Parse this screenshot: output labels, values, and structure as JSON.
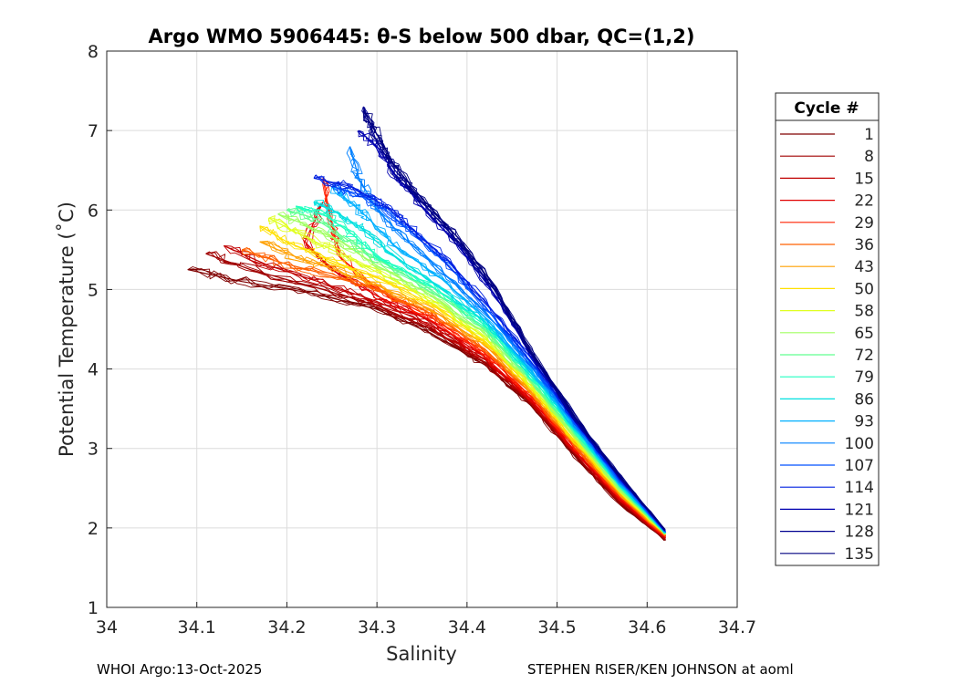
{
  "chart_data": {
    "type": "line",
    "title": "Argo WMO 5906445: θ-S below 500 dbar,  QC=(1,2)",
    "xlabel": "Salinity",
    "ylabel": "Potential Temperature (˚C)",
    "xlim": [
      34,
      34.7
    ],
    "ylim": [
      1,
      8
    ],
    "xticks": [
      "34",
      "34.1",
      "34.2",
      "34.3",
      "34.4",
      "34.5",
      "34.6",
      "34.7"
    ],
    "yticks": [
      "1",
      "2",
      "3",
      "4",
      "5",
      "6",
      "7",
      "8"
    ],
    "grid": true,
    "legend_title": "Cycle #",
    "legend_placement": "outside-right",
    "series": [
      {
        "name": "1",
        "color": "#800000",
        "values": [
          [
            34.62,
            1.85
          ],
          [
            34.57,
            2.3
          ],
          [
            34.52,
            2.9
          ],
          [
            34.47,
            3.55
          ],
          [
            34.42,
            4.05
          ],
          [
            34.36,
            4.45
          ],
          [
            34.3,
            4.75
          ],
          [
            34.23,
            4.95
          ],
          [
            34.15,
            5.1
          ],
          [
            34.09,
            5.25
          ]
        ]
      },
      {
        "name": "8",
        "color": "#a00000",
        "values": [
          [
            34.62,
            1.86
          ],
          [
            34.57,
            2.32
          ],
          [
            34.52,
            2.92
          ],
          [
            34.47,
            3.58
          ],
          [
            34.42,
            4.08
          ],
          [
            34.36,
            4.5
          ],
          [
            34.3,
            4.8
          ],
          [
            34.24,
            5.0
          ],
          [
            34.16,
            5.25
          ],
          [
            34.11,
            5.45
          ]
        ]
      },
      {
        "name": "15",
        "color": "#c00000",
        "values": [
          [
            34.62,
            1.87
          ],
          [
            34.57,
            2.34
          ],
          [
            34.52,
            2.95
          ],
          [
            34.47,
            3.6
          ],
          [
            34.42,
            4.12
          ],
          [
            34.36,
            4.55
          ],
          [
            34.3,
            4.85
          ],
          [
            34.24,
            5.08
          ],
          [
            34.18,
            5.3
          ],
          [
            34.13,
            5.55
          ]
        ]
      },
      {
        "name": "22",
        "color": "#e00000",
        "values": [
          [
            34.62,
            1.88
          ],
          [
            34.57,
            2.36
          ],
          [
            34.52,
            2.97
          ],
          [
            34.47,
            3.63
          ],
          [
            34.42,
            4.15
          ],
          [
            34.36,
            4.6
          ],
          [
            34.3,
            4.92
          ],
          [
            34.25,
            5.25
          ],
          [
            34.22,
            5.6
          ],
          [
            34.24,
            6.1
          ]
        ]
      },
      {
        "name": "29",
        "color": "#ff2000",
        "values": [
          [
            34.62,
            1.89
          ],
          [
            34.57,
            2.38
          ],
          [
            34.52,
            3.0
          ],
          [
            34.47,
            3.66
          ],
          [
            34.42,
            4.2
          ],
          [
            34.36,
            4.65
          ],
          [
            34.3,
            5.0
          ],
          [
            34.26,
            5.4
          ],
          [
            34.25,
            5.8
          ],
          [
            34.24,
            6.4
          ]
        ]
      },
      {
        "name": "36",
        "color": "#ff6000",
        "values": [
          [
            34.62,
            1.9
          ],
          [
            34.57,
            2.4
          ],
          [
            34.52,
            3.03
          ],
          [
            34.47,
            3.7
          ],
          [
            34.42,
            4.25
          ],
          [
            34.36,
            4.7
          ],
          [
            34.3,
            5.0
          ],
          [
            34.24,
            5.2
          ],
          [
            34.19,
            5.35
          ],
          [
            34.15,
            5.5
          ]
        ]
      },
      {
        "name": "43",
        "color": "#ffa000",
        "values": [
          [
            34.62,
            1.91
          ],
          [
            34.57,
            2.42
          ],
          [
            34.52,
            3.06
          ],
          [
            34.47,
            3.73
          ],
          [
            34.42,
            4.3
          ],
          [
            34.36,
            4.75
          ],
          [
            34.3,
            5.05
          ],
          [
            34.24,
            5.3
          ],
          [
            34.2,
            5.45
          ],
          [
            34.17,
            5.6
          ]
        ]
      },
      {
        "name": "50",
        "color": "#ffe000",
        "values": [
          [
            34.62,
            1.92
          ],
          [
            34.57,
            2.44
          ],
          [
            34.52,
            3.09
          ],
          [
            34.47,
            3.77
          ],
          [
            34.42,
            4.35
          ],
          [
            34.36,
            4.82
          ],
          [
            34.3,
            5.15
          ],
          [
            34.24,
            5.4
          ],
          [
            34.2,
            5.6
          ],
          [
            34.17,
            5.8
          ]
        ]
      },
      {
        "name": "58",
        "color": "#e0ff20",
        "values": [
          [
            34.62,
            1.92
          ],
          [
            34.57,
            2.46
          ],
          [
            34.52,
            3.12
          ],
          [
            34.47,
            3.8
          ],
          [
            34.42,
            4.4
          ],
          [
            34.36,
            4.88
          ],
          [
            34.3,
            5.22
          ],
          [
            34.25,
            5.5
          ],
          [
            34.21,
            5.72
          ],
          [
            34.18,
            5.9
          ]
        ]
      },
      {
        "name": "65",
        "color": "#a0ff60",
        "values": [
          [
            34.62,
            1.93
          ],
          [
            34.57,
            2.48
          ],
          [
            34.52,
            3.15
          ],
          [
            34.47,
            3.84
          ],
          [
            34.42,
            4.45
          ],
          [
            34.36,
            4.93
          ],
          [
            34.3,
            5.3
          ],
          [
            34.26,
            5.6
          ],
          [
            34.22,
            5.82
          ],
          [
            34.19,
            5.95
          ]
        ]
      },
      {
        "name": "72",
        "color": "#60ff90",
        "values": [
          [
            34.62,
            1.93
          ],
          [
            34.57,
            2.5
          ],
          [
            34.52,
            3.18
          ],
          [
            34.47,
            3.88
          ],
          [
            34.42,
            4.5
          ],
          [
            34.36,
            5.0
          ],
          [
            34.3,
            5.38
          ],
          [
            34.26,
            5.68
          ],
          [
            34.23,
            5.9
          ],
          [
            34.2,
            6.0
          ]
        ]
      },
      {
        "name": "79",
        "color": "#20ffc0",
        "values": [
          [
            34.62,
            1.94
          ],
          [
            34.57,
            2.52
          ],
          [
            34.52,
            3.21
          ],
          [
            34.47,
            3.92
          ],
          [
            34.42,
            4.55
          ],
          [
            34.36,
            5.05
          ],
          [
            34.3,
            5.42
          ],
          [
            34.27,
            5.72
          ],
          [
            34.24,
            5.95
          ],
          [
            34.21,
            6.05
          ]
        ]
      },
      {
        "name": "86",
        "color": "#00e0e0",
        "values": [
          [
            34.62,
            1.94
          ],
          [
            34.57,
            2.54
          ],
          [
            34.52,
            3.24
          ],
          [
            34.47,
            3.96
          ],
          [
            34.42,
            4.6
          ],
          [
            34.36,
            5.1
          ],
          [
            34.31,
            5.5
          ],
          [
            34.28,
            5.8
          ],
          [
            34.25,
            6.0
          ],
          [
            34.23,
            6.1
          ]
        ]
      },
      {
        "name": "93",
        "color": "#00b0ff",
        "values": [
          [
            34.62,
            1.95
          ],
          [
            34.57,
            2.56
          ],
          [
            34.52,
            3.27
          ],
          [
            34.47,
            4.0
          ],
          [
            34.42,
            4.65
          ],
          [
            34.37,
            5.15
          ],
          [
            34.32,
            5.55
          ],
          [
            34.29,
            5.9
          ],
          [
            34.27,
            6.1
          ],
          [
            34.25,
            6.3
          ]
        ]
      },
      {
        "name": "100",
        "color": "#0080ff",
        "values": [
          [
            34.62,
            1.95
          ],
          [
            34.57,
            2.58
          ],
          [
            34.52,
            3.3
          ],
          [
            34.47,
            4.05
          ],
          [
            34.42,
            4.72
          ],
          [
            34.37,
            5.25
          ],
          [
            34.33,
            5.65
          ],
          [
            34.3,
            6.0
          ],
          [
            34.28,
            6.4
          ],
          [
            34.27,
            6.8
          ]
        ]
      },
      {
        "name": "107",
        "color": "#0050ff",
        "values": [
          [
            34.62,
            1.96
          ],
          [
            34.57,
            2.6
          ],
          [
            34.52,
            3.32
          ],
          [
            34.47,
            4.1
          ],
          [
            34.42,
            4.78
          ],
          [
            34.38,
            5.3
          ],
          [
            34.34,
            5.7
          ],
          [
            34.31,
            6.0
          ],
          [
            34.28,
            6.2
          ],
          [
            34.25,
            6.3
          ]
        ]
      },
      {
        "name": "114",
        "color": "#0020e0",
        "values": [
          [
            34.62,
            1.96
          ],
          [
            34.57,
            2.62
          ],
          [
            34.52,
            3.34
          ],
          [
            34.47,
            4.15
          ],
          [
            34.42,
            4.85
          ],
          [
            34.38,
            5.35
          ],
          [
            34.34,
            5.75
          ],
          [
            34.31,
            6.05
          ],
          [
            34.27,
            6.3
          ],
          [
            34.23,
            6.4
          ]
        ]
      },
      {
        "name": "121",
        "color": "#0000b0",
        "values": [
          [
            34.62,
            1.97
          ],
          [
            34.57,
            2.63
          ],
          [
            34.52,
            3.36
          ],
          [
            34.47,
            4.2
          ],
          [
            34.43,
            4.95
          ],
          [
            34.39,
            5.55
          ],
          [
            34.35,
            6.05
          ],
          [
            34.32,
            6.45
          ],
          [
            34.3,
            6.8
          ],
          [
            34.28,
            7.0
          ]
        ]
      },
      {
        "name": "128",
        "color": "#000090",
        "values": [
          [
            34.62,
            1.97
          ],
          [
            34.57,
            2.64
          ],
          [
            34.52,
            3.38
          ],
          [
            34.47,
            4.22
          ],
          [
            34.43,
            5.0
          ],
          [
            34.39,
            5.6
          ],
          [
            34.35,
            6.1
          ],
          [
            34.32,
            6.5
          ],
          [
            34.3,
            6.85
          ],
          [
            34.285,
            7.3
          ]
        ]
      },
      {
        "name": "135",
        "color": "#000080",
        "values": [
          [
            34.62,
            1.98
          ],
          [
            34.57,
            2.65
          ],
          [
            34.52,
            3.4
          ],
          [
            34.47,
            4.25
          ],
          [
            34.43,
            5.05
          ],
          [
            34.39,
            5.65
          ],
          [
            34.35,
            6.15
          ],
          [
            34.32,
            6.55
          ],
          [
            34.3,
            6.95
          ],
          [
            34.285,
            7.25
          ]
        ]
      }
    ]
  },
  "footer": {
    "left": "WHOI Argo:13-Oct-2025",
    "right": "STEPHEN RISER/KEN JOHNSON at aoml"
  }
}
